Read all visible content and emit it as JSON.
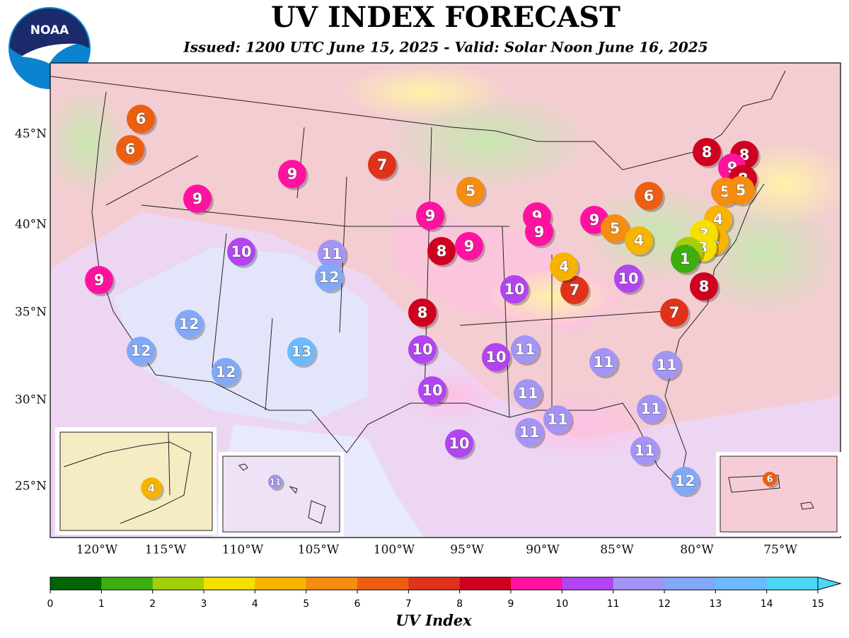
{
  "header": {
    "title": "UV INDEX FORECAST",
    "subtitle": "Issued: 1200 UTC June 15, 2025 - Valid: Solar Noon June 16, 2025"
  },
  "logo": {
    "text": "NOAA"
  },
  "map": {
    "lat_labels": [
      "45°N",
      "40°N",
      "35°N",
      "30°N",
      "25°N"
    ],
    "lon_labels": [
      "120°W",
      "115°W",
      "110°W",
      "105°W",
      "100°W",
      "95°W",
      "90°W",
      "85°W",
      "80°W",
      "75°W"
    ]
  },
  "markers": [
    6,
    6,
    9,
    9,
    7,
    5,
    9,
    8,
    9,
    9,
    10,
    11,
    12,
    12,
    12,
    12,
    13,
    8,
    10,
    10,
    10,
    10,
    11,
    10,
    11,
    11,
    11,
    7,
    4,
    9,
    9,
    9,
    5,
    4,
    10,
    6,
    8,
    7,
    11,
    11,
    11,
    11,
    12,
    8,
    8,
    9,
    8,
    5,
    5,
    4,
    4,
    3,
    3,
    2,
    1
  ],
  "insets": {
    "alaska": 4,
    "hawaii": 11,
    "puerto_rico": 6
  },
  "colorbar": {
    "label": "UV Index",
    "ticks": [
      0,
      1,
      2,
      3,
      4,
      5,
      6,
      7,
      8,
      9,
      10,
      11,
      12,
      13,
      14,
      15
    ],
    "colors": [
      "#006400",
      "#3cae12",
      "#a2cf0a",
      "#f6e000",
      "#f6b400",
      "#f68c10",
      "#ee5e10",
      "#e0321a",
      "#cf0020",
      "#ff12a0",
      "#b244f2",
      "#a394f6",
      "#82a8f8",
      "#6cbaff",
      "#4cd6f6"
    ]
  }
}
